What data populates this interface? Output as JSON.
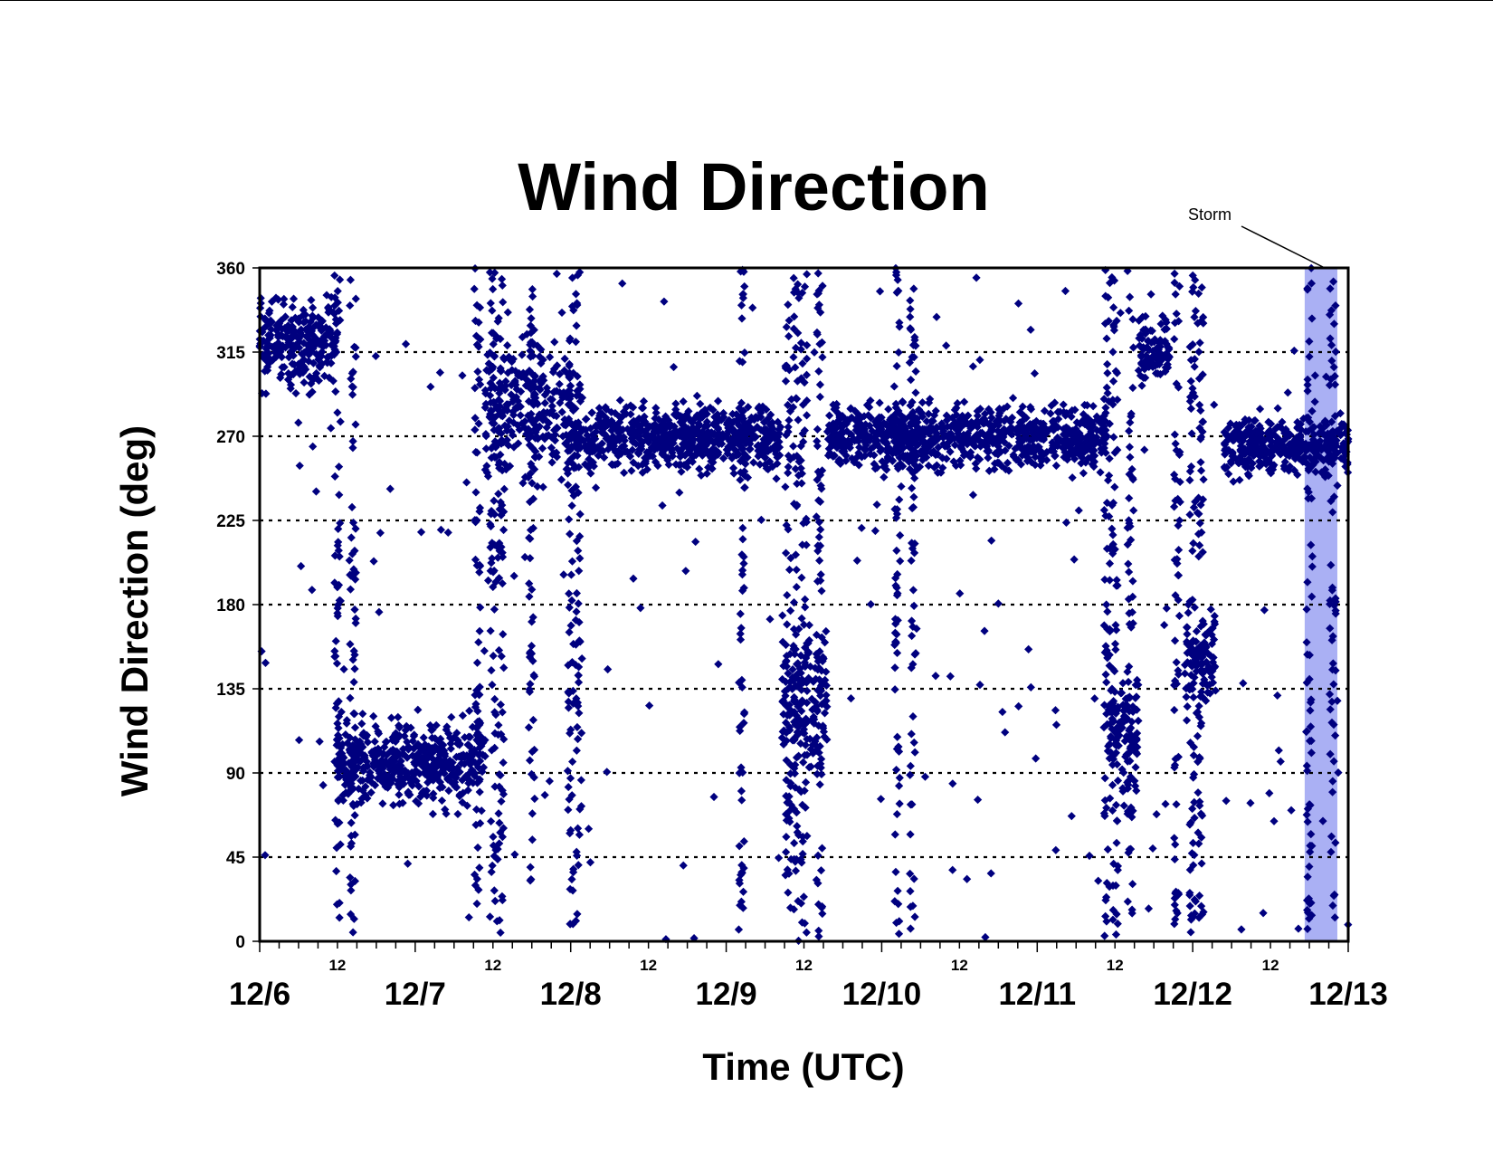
{
  "chart_data": {
    "type": "scatter",
    "title": "Wind Direction",
    "xlabel": "Time (UTC)",
    "ylabel": "Wind Direction (deg)",
    "x_range": [
      "12/6",
      "12/13"
    ],
    "ylim": [
      0,
      360
    ],
    "y_ticks": [
      "0",
      "45",
      "90",
      "135",
      "180",
      "225",
      "270",
      "315",
      "360"
    ],
    "x_day_labels": [
      "12/6",
      "12/7",
      "12/8",
      "12/9",
      "12/10",
      "12/11",
      "12/12",
      "12/13"
    ],
    "x_noon_label": "12",
    "grid": "horizontal dotted lines at 45-degree intervals",
    "marker": "diamond",
    "marker_color": "#00007f",
    "annotation": {
      "text": "Storm",
      "x_range_days": [
        6.72,
        6.93
      ],
      "color": "#aab0f4"
    },
    "data_description_segments": [
      {
        "t_start": 0.0,
        "t_end": 0.5,
        "direction_center_deg": 320,
        "spread_deg": 25
      },
      {
        "t_start": 0.5,
        "t_end": 1.45,
        "direction_center_deg": 95,
        "spread_deg": 25
      },
      {
        "t_start": 1.45,
        "t_end": 2.0,
        "direction_center_deg": 285,
        "spread_deg": 45
      },
      {
        "t_start": 2.0,
        "t_end": 3.35,
        "direction_center_deg": 270,
        "spread_deg": 20
      },
      {
        "t_start": 3.35,
        "t_end": 3.65,
        "direction_center_deg": 130,
        "spread_deg": 40
      },
      {
        "t_start": 3.65,
        "t_end": 5.45,
        "direction_center_deg": 270,
        "spread_deg": 20
      },
      {
        "t_start": 5.45,
        "t_end": 5.65,
        "direction_center_deg": 110,
        "spread_deg": 40
      },
      {
        "t_start": 5.65,
        "t_end": 5.85,
        "direction_center_deg": 315,
        "spread_deg": 20
      },
      {
        "t_start": 5.95,
        "t_end": 6.15,
        "direction_center_deg": 150,
        "spread_deg": 30
      },
      {
        "t_start": 6.2,
        "t_end": 7.0,
        "direction_center_deg": 265,
        "spread_deg": 18
      }
    ]
  }
}
